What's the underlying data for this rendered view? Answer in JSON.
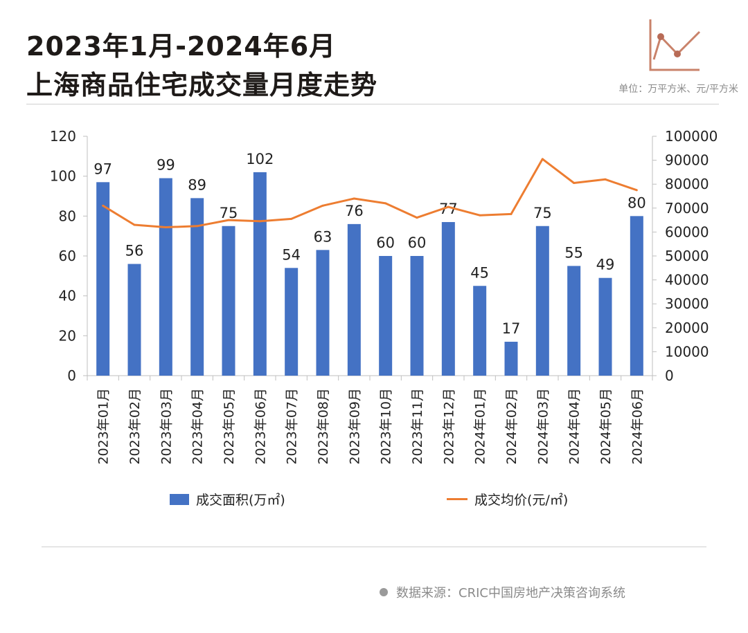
{
  "header": {
    "title_line1": "2023年1月-2024年6月",
    "title_line2": "上海商品住宅成交量月度走势",
    "unit": "单位：万平方米、元/平方米"
  },
  "footer": {
    "source": "数据来源：CRIC中国房地产决策咨询系统"
  },
  "colors": {
    "bar": "#4472C4",
    "line": "#ED7D31",
    "axis": "#bfbfbf",
    "text": "#222222",
    "icon": "#c9826a",
    "icon_dot": "#b86b56"
  },
  "chart_data": {
    "type": "bar",
    "categories": [
      "2023年01月",
      "2023年02月",
      "2023年03月",
      "2023年04月",
      "2023年05月",
      "2023年06月",
      "2023年07月",
      "2023年08月",
      "2023年09月",
      "2023年10月",
      "2023年11月",
      "2023年12月",
      "2024年01月",
      "2024年02月",
      "2024年03月",
      "2024年04月",
      "2024年05月",
      "2024年06月"
    ],
    "series": [
      {
        "name": "成交面积(万㎡)",
        "type": "bar",
        "axis": "left",
        "values": [
          97,
          56,
          99,
          89,
          75,
          102,
          54,
          63,
          76,
          60,
          60,
          77,
          45,
          17,
          75,
          55,
          49,
          80
        ],
        "labels": [
          "97",
          "56",
          "99",
          "89",
          "75",
          "102",
          "54",
          "63",
          "76",
          "60",
          "60",
          "77",
          "45",
          "17",
          "75",
          "55",
          "49",
          "80"
        ]
      },
      {
        "name": "成交均价(元/㎡)",
        "type": "line",
        "axis": "right",
        "values": [
          71000,
          63000,
          62000,
          62500,
          65000,
          64500,
          65500,
          71000,
          74000,
          72000,
          66000,
          70500,
          67000,
          67500,
          90500,
          80500,
          82000,
          77500
        ]
      }
    ],
    "y_left": {
      "min": 0,
      "max": 120,
      "step": 20,
      "ticks": [
        "0",
        "20",
        "40",
        "60",
        "80",
        "100",
        "120"
      ]
    },
    "y_right": {
      "min": 0,
      "max": 100000,
      "step": 10000,
      "ticks": [
        "0",
        "10000",
        "20000",
        "30000",
        "40000",
        "50000",
        "60000",
        "70000",
        "80000",
        "90000",
        "100000"
      ]
    },
    "legend_position": "bottom",
    "grid": false
  }
}
